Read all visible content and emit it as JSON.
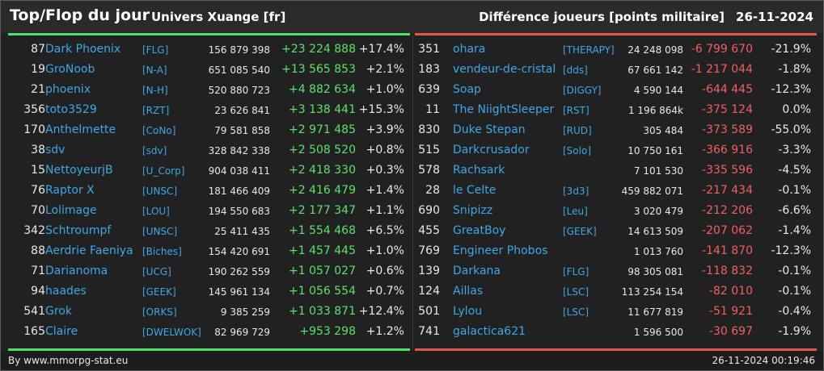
{
  "header": {
    "title": "Top/Flop du jour",
    "subtitle": "Univers Xuange [fr]",
    "right_title": "Différence joueurs [points militaire]",
    "date": "26-11-2024"
  },
  "colors": {
    "top": "#4fe068",
    "flop": "#e0554f",
    "link": "#3fa6e8",
    "gain": "#5ee06c",
    "loss": "#f06060"
  },
  "top": [
    {
      "rank": "87",
      "name": "Dark Phoenix",
      "tag": "[FLG]",
      "points": "156 879 398",
      "diff": "+23 224 888",
      "pct": "+17.4%"
    },
    {
      "rank": "19",
      "name": "GroNoob",
      "tag": "[N-A]",
      "points": "651 085 540",
      "diff": "+13 565 853",
      "pct": "+2.1%"
    },
    {
      "rank": "21",
      "name": "phoenix",
      "tag": "[N-H]",
      "points": "520 880 723",
      "diff": "+4 882 634",
      "pct": "+1.0%"
    },
    {
      "rank": "356",
      "name": "toto3529",
      "tag": "[RZT]",
      "points": "23 626 841",
      "diff": "+3 138 441",
      "pct": "+15.3%"
    },
    {
      "rank": "170",
      "name": "Anthelmette",
      "tag": "[CoNo]",
      "points": "79 581 858",
      "diff": "+2 971 485",
      "pct": "+3.9%"
    },
    {
      "rank": "38",
      "name": "sdv",
      "tag": "[sdv]",
      "points": "328 842 338",
      "diff": "+2 508 520",
      "pct": "+0.8%"
    },
    {
      "rank": "15",
      "name": "NettoyeurjB",
      "tag": "[U_Corp]",
      "points": "904 038 411",
      "diff": "+2 418 330",
      "pct": "+0.3%"
    },
    {
      "rank": "76",
      "name": "Raptor X",
      "tag": "[UNSC]",
      "points": "181 466 409",
      "diff": "+2 416 479",
      "pct": "+1.4%"
    },
    {
      "rank": "70",
      "name": "Lolimage",
      "tag": "[LOU]",
      "points": "194 550 683",
      "diff": "+2 177 347",
      "pct": "+1.1%"
    },
    {
      "rank": "342",
      "name": "Schtroumpf",
      "tag": "[UNSC]",
      "points": "25 411 435",
      "diff": "+1 554 468",
      "pct": "+6.5%"
    },
    {
      "rank": "88",
      "name": "Aerdrie Faeniya",
      "tag": "[Biches]",
      "points": "154 420 691",
      "diff": "+1 457 445",
      "pct": "+1.0%"
    },
    {
      "rank": "71",
      "name": "Darianoma",
      "tag": "[UCG]",
      "points": "190 262 559",
      "diff": "+1 057 027",
      "pct": "+0.6%"
    },
    {
      "rank": "94",
      "name": "haades",
      "tag": "[GEEK]",
      "points": "145 961 134",
      "diff": "+1 056 554",
      "pct": "+0.7%"
    },
    {
      "rank": "541",
      "name": "Grok",
      "tag": "[ORKS]",
      "points": "9 385 259",
      "diff": "+1 033 871",
      "pct": "+12.4%"
    },
    {
      "rank": "165",
      "name": "Claire",
      "tag": "[DWELWOK]",
      "points": "82 969 729",
      "diff": "+953 298",
      "pct": "+1.2%"
    }
  ],
  "flop": [
    {
      "rank": "351",
      "name": "ohara",
      "tag": "[THERAPY]",
      "points": "24 248 098",
      "diff": "-6 799 670",
      "pct": "-21.9%"
    },
    {
      "rank": "183",
      "name": "vendeur-de-cristal",
      "tag": "[dds]",
      "points": "67 661 142",
      "diff": "-1 217 044",
      "pct": "-1.8%"
    },
    {
      "rank": "639",
      "name": "Soap",
      "tag": "[DIGGY]",
      "points": "4 590 144",
      "diff": "-644 445",
      "pct": "-12.3%"
    },
    {
      "rank": "11",
      "name": "The NiightSleeper",
      "tag": "[RST]",
      "points": "1 196 864k",
      "diff": "-375 124",
      "pct": "0.0%"
    },
    {
      "rank": "830",
      "name": "Duke Stepan",
      "tag": "[RUD]",
      "points": "305 484",
      "diff": "-373 589",
      "pct": "-55.0%"
    },
    {
      "rank": "515",
      "name": "Darkcrusador",
      "tag": "[Solo]",
      "points": "10 750 161",
      "diff": "-366 916",
      "pct": "-3.3%"
    },
    {
      "rank": "578",
      "name": "Rachsark",
      "tag": "",
      "points": "7 101 530",
      "diff": "-335 596",
      "pct": "-4.5%"
    },
    {
      "rank": "28",
      "name": "le Celte",
      "tag": "[3d3]",
      "points": "459 882 071",
      "diff": "-217 434",
      "pct": "-0.1%"
    },
    {
      "rank": "690",
      "name": "Snipizz",
      "tag": "[Leu]",
      "points": "3 020 479",
      "diff": "-212 206",
      "pct": "-6.6%"
    },
    {
      "rank": "455",
      "name": "GreatBoy",
      "tag": "[GEEK]",
      "points": "14 613 509",
      "diff": "-207 062",
      "pct": "-1.4%"
    },
    {
      "rank": "769",
      "name": "Engineer Phobos",
      "tag": "",
      "points": "1 013 760",
      "diff": "-141 870",
      "pct": "-12.3%"
    },
    {
      "rank": "139",
      "name": "Darkana",
      "tag": "[FLG]",
      "points": "98 305 081",
      "diff": "-118 832",
      "pct": "-0.1%"
    },
    {
      "rank": "124",
      "name": "Aillas",
      "tag": "[LSC]",
      "points": "113 254 154",
      "diff": "-82 010",
      "pct": "-0.1%"
    },
    {
      "rank": "501",
      "name": "Lylou",
      "tag": "[LSC]",
      "points": "11 677 819",
      "diff": "-51 921",
      "pct": "-0.4%"
    },
    {
      "rank": "741",
      "name": "galactica621",
      "tag": "",
      "points": "1 596 500",
      "diff": "-30 697",
      "pct": "-1.9%"
    }
  ],
  "footer": {
    "credit": "By www.mmorpg-stat.eu",
    "timestamp": "26-11-2024 00:19:46"
  }
}
